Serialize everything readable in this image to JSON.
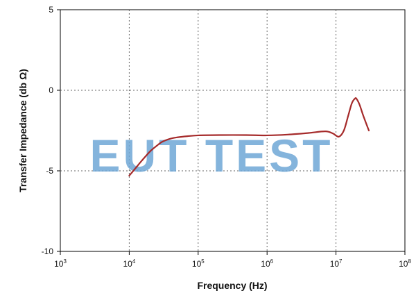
{
  "chart_data": {
    "type": "line",
    "xlabel": "Frequency (Hz)",
    "ylabel": "Transfer Impedance (db Ω)",
    "xscale": "log",
    "xlim": [
      1000,
      100000000
    ],
    "ylim": [
      -10,
      5
    ],
    "x_ticks": [
      {
        "base": "10",
        "exp": "3"
      },
      {
        "base": "10",
        "exp": "4"
      },
      {
        "base": "10",
        "exp": "5"
      },
      {
        "base": "10",
        "exp": "6"
      },
      {
        "base": "10",
        "exp": "7"
      },
      {
        "base": "10",
        "exp": "8"
      }
    ],
    "y_ticks": [
      "5",
      "0",
      "-5",
      "-10"
    ],
    "grid": "dotted",
    "legend": "none",
    "series": [
      {
        "color": "#a52a2a",
        "x": [
          10000,
          12000,
          15000,
          20000,
          25000,
          30000,
          40000,
          50000,
          70000,
          100000,
          200000,
          500000,
          1000000,
          2000000,
          4000000,
          7000000,
          9000000,
          11000000,
          13000000,
          15000000,
          17000000,
          19000000,
          20000000,
          22000000,
          25000000,
          30000000
        ],
        "y": [
          -5.3,
          -4.9,
          -4.4,
          -3.8,
          -3.45,
          -3.2,
          -3.0,
          -2.92,
          -2.85,
          -2.8,
          -2.78,
          -2.78,
          -2.8,
          -2.75,
          -2.65,
          -2.55,
          -2.68,
          -2.88,
          -2.5,
          -1.6,
          -0.8,
          -0.5,
          -0.55,
          -0.9,
          -1.6,
          -2.5
        ]
      }
    ]
  },
  "watermark": "EUT TEST"
}
